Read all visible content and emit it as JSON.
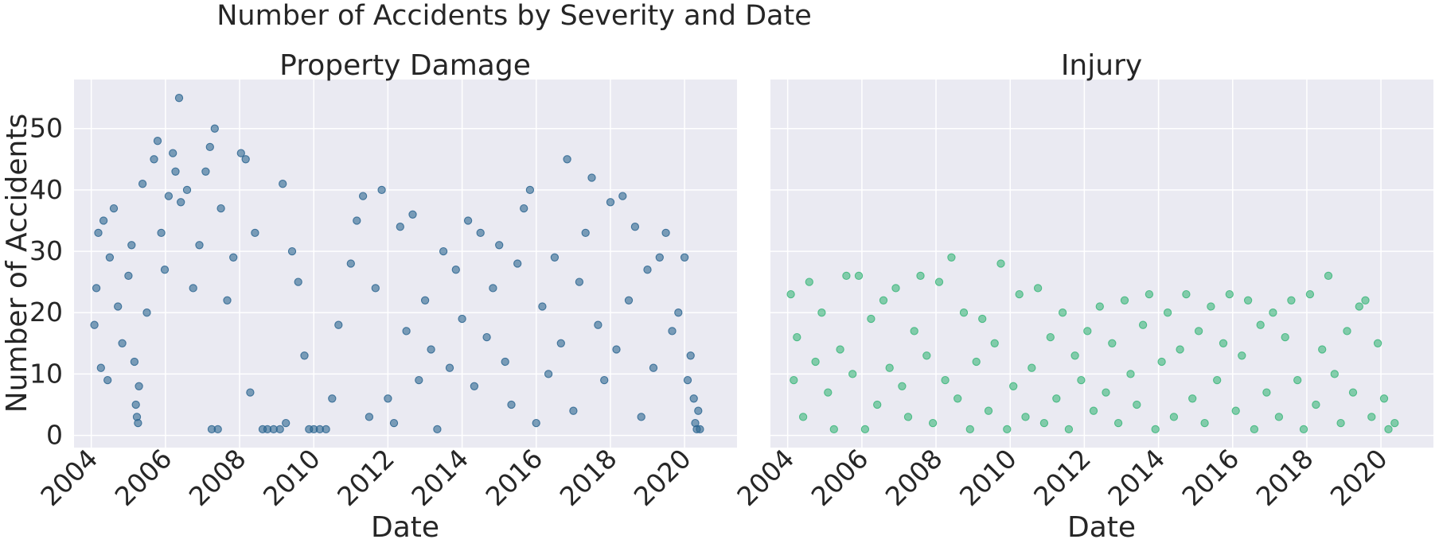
{
  "figure": {
    "title": "Number of Accidents by Severity and Date"
  },
  "chart_data": [
    {
      "type": "scatter",
      "title": "Property Damage",
      "xlabel": "Date",
      "ylabel": "Number of Accidents",
      "xlim": [
        "2003-07-15",
        "2021-06-01"
      ],
      "ylim": [
        -2,
        58
      ],
      "xticks": [
        "2004",
        "2006",
        "2008",
        "2010",
        "2012",
        "2014",
        "2016",
        "2018",
        "2020"
      ],
      "yticks": [
        "0",
        "10",
        "20",
        "30",
        "40",
        "50"
      ],
      "color": "#2b6590",
      "grid": true,
      "series": [
        {
          "points": [
            [
              "2004-02-01",
              18
            ],
            [
              "2004-02-20",
              24
            ],
            [
              "2004-03-10",
              33
            ],
            [
              "2004-04-05",
              11
            ],
            [
              "2004-05-01",
              35
            ],
            [
              "2004-06-10",
              9
            ],
            [
              "2004-07-01",
              29
            ],
            [
              "2004-08-10",
              37
            ],
            [
              "2004-09-20",
              21
            ],
            [
              "2004-11-01",
              15
            ],
            [
              "2005-01-01",
              26
            ],
            [
              "2005-02-01",
              31
            ],
            [
              "2005-03-01",
              12
            ],
            [
              "2005-03-15",
              5
            ],
            [
              "2005-03-25",
              3
            ],
            [
              "2005-04-05",
              2
            ],
            [
              "2005-04-15",
              8
            ],
            [
              "2005-05-20",
              41
            ],
            [
              "2005-07-01",
              20
            ],
            [
              "2005-09-10",
              45
            ],
            [
              "2005-10-15",
              48
            ],
            [
              "2005-11-20",
              33
            ],
            [
              "2005-12-25",
              27
            ],
            [
              "2006-02-01",
              39
            ],
            [
              "2006-03-15",
              46
            ],
            [
              "2006-04-10",
              43
            ],
            [
              "2006-05-15",
              55
            ],
            [
              "2006-06-01",
              38
            ],
            [
              "2006-08-01",
              40
            ],
            [
              "2006-10-01",
              24
            ],
            [
              "2006-12-01",
              31
            ],
            [
              "2007-02-01",
              43
            ],
            [
              "2007-03-15",
              47
            ],
            [
              "2007-05-01",
              50
            ],
            [
              "2007-04-01",
              1
            ],
            [
              "2007-06-01",
              1
            ],
            [
              "2007-07-01",
              37
            ],
            [
              "2007-09-01",
              22
            ],
            [
              "2007-11-01",
              29
            ],
            [
              "2008-01-15",
              46
            ],
            [
              "2008-03-01",
              45
            ],
            [
              "2008-04-15",
              7
            ],
            [
              "2008-06-01",
              33
            ],
            [
              "2008-08-15",
              1
            ],
            [
              "2008-10-01",
              1
            ],
            [
              "2008-12-01",
              1
            ],
            [
              "2009-02-01",
              1
            ],
            [
              "2009-04-01",
              2
            ],
            [
              "2009-03-01",
              41
            ],
            [
              "2009-06-01",
              30
            ],
            [
              "2009-08-01",
              25
            ],
            [
              "2009-10-01",
              13
            ],
            [
              "2009-11-15",
              1
            ],
            [
              "2010-01-01",
              1
            ],
            [
              "2010-03-01",
              1
            ],
            [
              "2010-05-01",
              1
            ],
            [
              "2010-07-01",
              6
            ],
            [
              "2010-09-01",
              18
            ],
            [
              "2011-01-01",
              28
            ],
            [
              "2011-03-01",
              35
            ],
            [
              "2011-05-01",
              39
            ],
            [
              "2011-07-01",
              3
            ],
            [
              "2011-09-01",
              24
            ],
            [
              "2011-11-01",
              40
            ],
            [
              "2012-01-01",
              6
            ],
            [
              "2012-03-01",
              2
            ],
            [
              "2012-05-01",
              34
            ],
            [
              "2012-07-01",
              17
            ],
            [
              "2012-09-01",
              36
            ],
            [
              "2012-11-01",
              9
            ],
            [
              "2013-01-01",
              22
            ],
            [
              "2013-03-01",
              14
            ],
            [
              "2013-05-01",
              1
            ],
            [
              "2013-07-01",
              30
            ],
            [
              "2013-09-01",
              11
            ],
            [
              "2013-11-01",
              27
            ],
            [
              "2014-01-01",
              19
            ],
            [
              "2014-03-01",
              35
            ],
            [
              "2014-05-01",
              8
            ],
            [
              "2014-07-01",
              33
            ],
            [
              "2014-09-01",
              16
            ],
            [
              "2014-11-01",
              24
            ],
            [
              "2015-01-01",
              31
            ],
            [
              "2015-03-01",
              12
            ],
            [
              "2015-05-01",
              5
            ],
            [
              "2015-07-01",
              28
            ],
            [
              "2015-09-01",
              37
            ],
            [
              "2015-11-01",
              40
            ],
            [
              "2016-01-01",
              2
            ],
            [
              "2016-03-01",
              21
            ],
            [
              "2016-05-01",
              10
            ],
            [
              "2016-07-01",
              29
            ],
            [
              "2016-09-01",
              15
            ],
            [
              "2016-11-01",
              45
            ],
            [
              "2017-01-01",
              4
            ],
            [
              "2017-03-01",
              25
            ],
            [
              "2017-05-01",
              33
            ],
            [
              "2017-07-01",
              42
            ],
            [
              "2017-09-01",
              18
            ],
            [
              "2017-11-01",
              9
            ],
            [
              "2018-01-01",
              38
            ],
            [
              "2018-03-01",
              14
            ],
            [
              "2018-05-01",
              39
            ],
            [
              "2018-07-01",
              22
            ],
            [
              "2018-09-01",
              34
            ],
            [
              "2018-11-01",
              3
            ],
            [
              "2019-01-01",
              27
            ],
            [
              "2019-03-01",
              11
            ],
            [
              "2019-05-01",
              29
            ],
            [
              "2019-07-01",
              33
            ],
            [
              "2019-09-01",
              17
            ],
            [
              "2019-11-01",
              20
            ],
            [
              "2020-01-01",
              29
            ],
            [
              "2020-02-01",
              9
            ],
            [
              "2020-03-01",
              13
            ],
            [
              "2020-04-01",
              6
            ],
            [
              "2020-04-15",
              2
            ],
            [
              "2020-05-01",
              1
            ],
            [
              "2020-05-15",
              4
            ],
            [
              "2020-06-01",
              1
            ]
          ]
        }
      ]
    },
    {
      "type": "scatter",
      "title": "Injury",
      "xlabel": "Date",
      "ylabel": "",
      "xlim": [
        "2003-07-15",
        "2021-06-01"
      ],
      "ylim": [
        -2,
        58
      ],
      "xticks": [
        "2004",
        "2006",
        "2008",
        "2010",
        "2012",
        "2014",
        "2016",
        "2018",
        "2020"
      ],
      "color": "#3bb67a",
      "grid": true,
      "series": [
        {
          "points": [
            [
              "2004-02-01",
              23
            ],
            [
              "2004-03-01",
              9
            ],
            [
              "2004-04-01",
              16
            ],
            [
              "2004-06-01",
              3
            ],
            [
              "2004-08-01",
              25
            ],
            [
              "2004-10-01",
              12
            ],
            [
              "2004-12-01",
              20
            ],
            [
              "2005-02-01",
              7
            ],
            [
              "2005-04-01",
              1
            ],
            [
              "2005-06-01",
              14
            ],
            [
              "2005-08-01",
              26
            ],
            [
              "2005-10-01",
              10
            ],
            [
              "2005-12-01",
              26
            ],
            [
              "2006-02-01",
              1
            ],
            [
              "2006-04-01",
              19
            ],
            [
              "2006-06-01",
              5
            ],
            [
              "2006-08-01",
              22
            ],
            [
              "2006-10-01",
              11
            ],
            [
              "2006-12-01",
              24
            ],
            [
              "2007-02-01",
              8
            ],
            [
              "2007-04-01",
              3
            ],
            [
              "2007-06-01",
              17
            ],
            [
              "2007-08-01",
              26
            ],
            [
              "2007-10-01",
              13
            ],
            [
              "2007-12-01",
              2
            ],
            [
              "2008-02-01",
              25
            ],
            [
              "2008-04-01",
              9
            ],
            [
              "2008-06-01",
              29
            ],
            [
              "2008-08-01",
              6
            ],
            [
              "2008-10-01",
              20
            ],
            [
              "2008-12-01",
              1
            ],
            [
              "2009-02-01",
              12
            ],
            [
              "2009-04-01",
              19
            ],
            [
              "2009-06-01",
              4
            ],
            [
              "2009-08-01",
              15
            ],
            [
              "2009-10-01",
              28
            ],
            [
              "2009-12-01",
              1
            ],
            [
              "2010-02-01",
              8
            ],
            [
              "2010-04-01",
              23
            ],
            [
              "2010-06-01",
              3
            ],
            [
              "2010-08-01",
              11
            ],
            [
              "2010-10-01",
              24
            ],
            [
              "2010-12-01",
              2
            ],
            [
              "2011-02-01",
              16
            ],
            [
              "2011-04-01",
              6
            ],
            [
              "2011-06-01",
              20
            ],
            [
              "2011-08-01",
              1
            ],
            [
              "2011-10-01",
              13
            ],
            [
              "2011-12-01",
              9
            ],
            [
              "2012-02-01",
              17
            ],
            [
              "2012-04-01",
              4
            ],
            [
              "2012-06-01",
              21
            ],
            [
              "2012-08-01",
              7
            ],
            [
              "2012-10-01",
              15
            ],
            [
              "2012-12-01",
              2
            ],
            [
              "2013-02-01",
              22
            ],
            [
              "2013-04-01",
              10
            ],
            [
              "2013-06-01",
              5
            ],
            [
              "2013-08-01",
              18
            ],
            [
              "2013-10-01",
              23
            ],
            [
              "2013-12-01",
              1
            ],
            [
              "2014-02-01",
              12
            ],
            [
              "2014-04-01",
              20
            ],
            [
              "2014-06-01",
              3
            ],
            [
              "2014-08-01",
              14
            ],
            [
              "2014-10-01",
              23
            ],
            [
              "2014-12-01",
              6
            ],
            [
              "2015-02-01",
              17
            ],
            [
              "2015-04-01",
              2
            ],
            [
              "2015-06-01",
              21
            ],
            [
              "2015-08-01",
              9
            ],
            [
              "2015-10-01",
              15
            ],
            [
              "2015-12-01",
              23
            ],
            [
              "2016-02-01",
              4
            ],
            [
              "2016-04-01",
              13
            ],
            [
              "2016-06-01",
              22
            ],
            [
              "2016-08-01",
              1
            ],
            [
              "2016-10-01",
              18
            ],
            [
              "2016-12-01",
              7
            ],
            [
              "2017-02-01",
              20
            ],
            [
              "2017-04-01",
              3
            ],
            [
              "2017-06-01",
              16
            ],
            [
              "2017-08-01",
              22
            ],
            [
              "2017-10-01",
              9
            ],
            [
              "2017-12-01",
              1
            ],
            [
              "2018-02-01",
              23
            ],
            [
              "2018-04-01",
              5
            ],
            [
              "2018-06-01",
              14
            ],
            [
              "2018-08-01",
              26
            ],
            [
              "2018-10-01",
              10
            ],
            [
              "2018-12-01",
              2
            ],
            [
              "2019-02-01",
              17
            ],
            [
              "2019-04-01",
              7
            ],
            [
              "2019-06-01",
              21
            ],
            [
              "2019-08-01",
              22
            ],
            [
              "2019-10-01",
              3
            ],
            [
              "2019-12-01",
              15
            ],
            [
              "2020-02-01",
              6
            ],
            [
              "2020-03-15",
              1
            ],
            [
              "2020-05-15",
              2
            ]
          ]
        }
      ]
    }
  ]
}
